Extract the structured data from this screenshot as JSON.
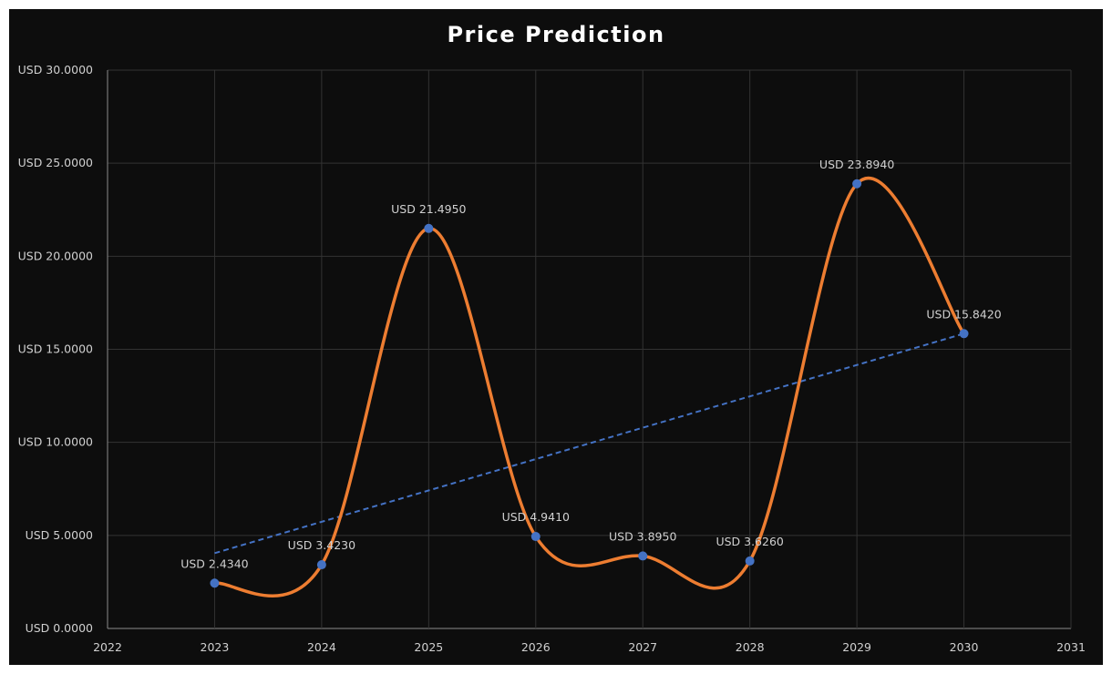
{
  "chart_data": {
    "type": "line",
    "title": "Price Prediction",
    "x": [
      2023,
      2024,
      2025,
      2026,
      2027,
      2028,
      2029,
      2030
    ],
    "series": [
      {
        "values": [
          2.434,
          3.423,
          21.495,
          4.941,
          3.895,
          3.626,
          23.894,
          15.842
        ],
        "labels": [
          "USD 2.4340",
          "USD 3.4230",
          "USD 21.4950",
          "USD 4.9410",
          "USD 3.8950",
          "USD 3.6260",
          "USD 23.8940",
          "USD 15.8420"
        ],
        "line_color": "#ed7d31",
        "marker_color": "#4472c4",
        "smooth": true
      }
    ],
    "trendline": {
      "type": "linear",
      "color": "#4472c4",
      "style": "dashed"
    },
    "xlim": [
      2022,
      2031
    ],
    "ylim": [
      0,
      30
    ],
    "xticks": [
      "2022",
      "2023",
      "2024",
      "2025",
      "2026",
      "2027",
      "2028",
      "2029",
      "2030",
      "2031"
    ],
    "yticks": [
      "USD 0.0000",
      "USD 5.0000",
      "USD 10.0000",
      "USD 15.0000",
      "USD 20.0000",
      "USD 25.0000",
      "USD 30.0000"
    ],
    "grid": true,
    "background": "#0d0d0d"
  }
}
